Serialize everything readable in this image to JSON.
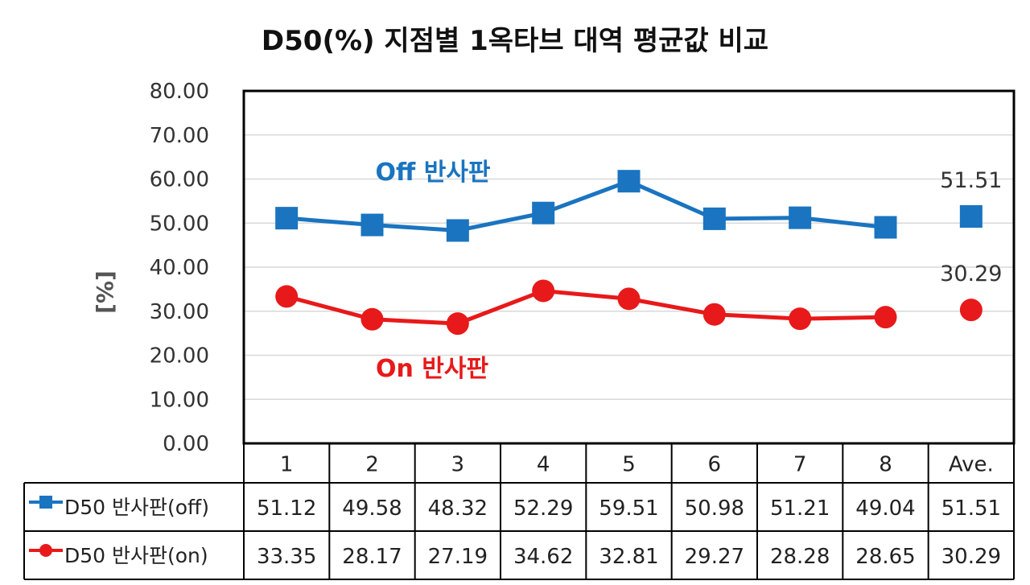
{
  "chart_data": {
    "type": "line",
    "title": "D50(%) 지점별 1옥타브 대역 평균값 비교",
    "ylabel": "[%]",
    "ylim": [
      0,
      80
    ],
    "yticks": [
      "0.00",
      "10.00",
      "20.00",
      "30.00",
      "40.00",
      "50.00",
      "60.00",
      "70.00",
      "80.00"
    ],
    "categories": [
      "1",
      "2",
      "3",
      "4",
      "5",
      "6",
      "7",
      "8",
      "Ave."
    ],
    "grid": true,
    "series": [
      {
        "name": "D50 반사판(off)",
        "color": "#1a74c0",
        "marker": "square",
        "values": [
          51.12,
          49.58,
          48.32,
          52.29,
          59.51,
          50.98,
          51.21,
          49.04,
          51.51
        ],
        "cells": [
          "51.12",
          "49.58",
          "48.32",
          "52.29",
          "59.51",
          "50.98",
          "51.21",
          "49.04",
          "51.51"
        ]
      },
      {
        "name": "D50 반사판(on)",
        "color": "#e8191a",
        "marker": "circle",
        "values": [
          33.35,
          28.17,
          27.19,
          34.62,
          32.81,
          29.27,
          28.28,
          28.65,
          30.29
        ],
        "cells": [
          "33.35",
          "28.17",
          "27.19",
          "34.62",
          "32.81",
          "29.27",
          "28.28",
          "28.65",
          "30.29"
        ]
      }
    ],
    "annotations": [
      {
        "text": "Off 반사판",
        "color": "#1a74c0",
        "series": 0
      },
      {
        "text": "On 반사판",
        "color": "#e8191a",
        "series": 1
      }
    ],
    "average_labels": [
      "51.51",
      "30.29"
    ]
  }
}
